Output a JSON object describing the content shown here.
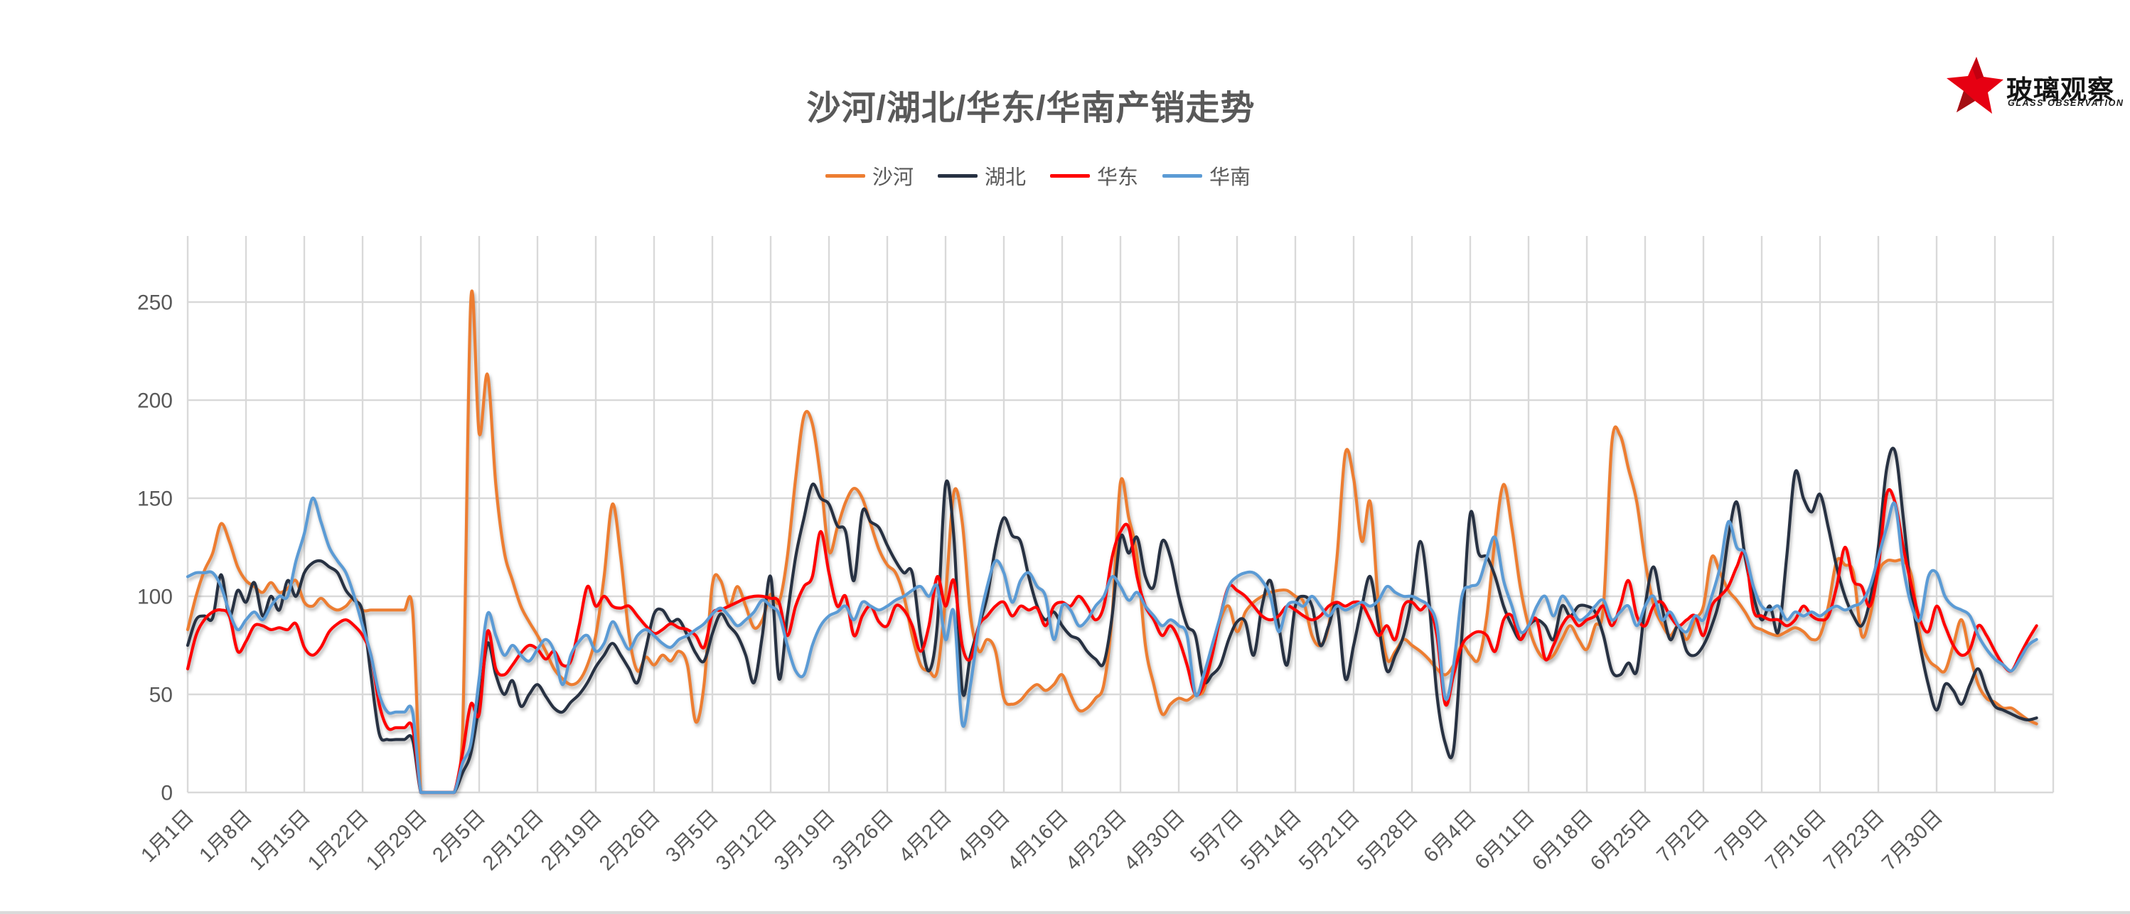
{
  "title": "沙河/湖北/华东/华南产销走势",
  "logo": {
    "name": "玻璃观察",
    "subtitle": "GLASS OBSERVATION"
  },
  "colors": {
    "grid": "#D9D9D9",
    "axis_text": "#595959",
    "logo_red": "#E60012"
  },
  "chart_data": {
    "type": "line",
    "title": "沙河/湖北/华东/华南产销走势",
    "legend_position": "top",
    "grid": true,
    "smoothed_lines": true,
    "ylim": [
      0,
      283
    ],
    "y_ticks": [
      0,
      50,
      100,
      150,
      200,
      250
    ],
    "x_tick_interval_days": 7,
    "x_tick_labels": [
      "1月1日",
      "1月8日",
      "1月15日",
      "1月22日",
      "1月29日",
      "2月5日",
      "2月12日",
      "2月19日",
      "2月26日",
      "3月5日",
      "3月12日",
      "3月19日",
      "3月26日",
      "4月2日",
      "4月9日",
      "4月16日",
      "4月23日",
      "4月30日",
      "5月7日",
      "5月14日",
      "5月21日",
      "5月28日",
      "6月4日",
      "6月11日",
      "6月18日",
      "6月25日",
      "7月2日",
      "7月9日",
      "7月16日",
      "7月23日",
      "7月30日"
    ],
    "series": [
      {
        "id": "shahe",
        "name": "沙河",
        "color": "#ED7D31",
        "values": [
          83,
          100,
          113,
          122,
          137,
          128,
          115,
          108,
          105,
          102,
          107,
          102,
          104,
          108,
          97,
          95,
          99,
          95,
          93,
          95,
          99,
          93,
          93,
          93,
          93,
          93,
          93,
          93,
          0,
          0,
          0,
          0,
          0,
          30,
          251,
          183,
          213,
          157,
          123,
          108,
          95,
          87,
          80,
          72,
          63,
          58,
          55,
          57,
          65,
          80,
          110,
          147,
          120,
          80,
          62,
          69,
          65,
          70,
          67,
          72,
          65,
          36,
          55,
          106,
          108,
          95,
          105,
          95,
          84,
          88,
          101,
          97,
          120,
          160,
          192,
          188,
          160,
          123,
          135,
          148,
          155,
          150,
          137,
          124,
          116,
          112,
          100,
          80,
          65,
          62,
          62,
          100,
          153,
          138,
          90,
          72,
          78,
          72,
          48,
          45,
          47,
          52,
          55,
          52,
          55,
          60,
          50,
          42,
          43,
          48,
          55,
          90,
          158,
          140,
          120,
          75,
          55,
          40,
          45,
          48,
          47,
          50,
          52,
          70,
          88,
          95,
          82,
          92,
          97,
          100,
          102,
          103,
          103,
          100,
          97,
          80,
          75,
          85,
          120,
          173,
          160,
          128,
          148,
          95,
          68,
          72,
          78,
          75,
          72,
          68,
          63,
          60,
          65,
          75,
          70,
          68,
          90,
          130,
          157,
          135,
          105,
          85,
          73,
          68,
          70,
          78,
          85,
          78,
          73,
          85,
          95,
          178,
          182,
          165,
          148,
          118,
          96,
          86,
          80,
          85,
          78,
          88,
          95,
          120,
          112,
          103,
          98,
          92,
          85,
          83,
          81,
          80,
          82,
          84,
          82,
          78,
          80,
          95,
          118,
          116,
          112,
          80,
          90,
          112,
          118,
          118,
          118,
          110,
          80,
          68,
          64,
          62,
          75,
          88,
          70,
          55,
          48,
          46,
          43,
          43,
          40,
          37,
          35
        ]
      },
      {
        "id": "hubei",
        "name": "湖北",
        "color": "#273142",
        "values": [
          75,
          88,
          90,
          89,
          111,
          90,
          103,
          97,
          107,
          90,
          100,
          93,
          108,
          100,
          112,
          117,
          118,
          115,
          112,
          103,
          98,
          92,
          60,
          30,
          27,
          27,
          27,
          27,
          0,
          0,
          0,
          0,
          0,
          10,
          20,
          45,
          76,
          60,
          50,
          57,
          44,
          50,
          55,
          49,
          43,
          41,
          46,
          50,
          56,
          64,
          70,
          76,
          70,
          63,
          56,
          73,
          91,
          93,
          87,
          88,
          80,
          71,
          67,
          81,
          91,
          85,
          80,
          70,
          56,
          80,
          110,
          58,
          90,
          120,
          140,
          157,
          150,
          147,
          136,
          133,
          108,
          143,
          138,
          135,
          126,
          118,
          112,
          112,
          80,
          62,
          85,
          157,
          130,
          52,
          70,
          85,
          100,
          125,
          140,
          131,
          128,
          110,
          95,
          88,
          92,
          85,
          80,
          78,
          72,
          68,
          66,
          90,
          130,
          122,
          130,
          110,
          105,
          128,
          120,
          100,
          85,
          80,
          57,
          60,
          65,
          78,
          87,
          87,
          70,
          95,
          108,
          85,
          65,
          95,
          100,
          95,
          75,
          85,
          95,
          58,
          75,
          95,
          110,
          85,
          62,
          70,
          80,
          100,
          128,
          100,
          50,
          25,
          22,
          80,
          142,
          122,
          120,
          110,
          95,
          85,
          78,
          85,
          88,
          85,
          78,
          95,
          90,
          95,
          95,
          92,
          80,
          62,
          60,
          66,
          62,
          95,
          115,
          95,
          78,
          85,
          72,
          70,
          75,
          85,
          100,
          130,
          148,
          120,
          100,
          88,
          95,
          82,
          120,
          163,
          150,
          143,
          152,
          135,
          115,
          100,
          90,
          85,
          98,
          125,
          165,
          174,
          140,
          100,
          75,
          55,
          42,
          55,
          52,
          45,
          55,
          63,
          52,
          44,
          42,
          40,
          38,
          37,
          38
        ]
      },
      {
        "id": "huadong",
        "name": "华东",
        "color": "#FF0000",
        "values": [
          63,
          80,
          88,
          92,
          93,
          90,
          72,
          77,
          85,
          85,
          83,
          84,
          83,
          86,
          74,
          70,
          74,
          82,
          86,
          88,
          85,
          80,
          70,
          45,
          33,
          33,
          33,
          33,
          0,
          0,
          0,
          0,
          0,
          20,
          45,
          40,
          82,
          63,
          60,
          65,
          71,
          75,
          73,
          68,
          72,
          65,
          67,
          85,
          105,
          95,
          100,
          95,
          94,
          95,
          90,
          85,
          81,
          83,
          86,
          84,
          83,
          80,
          74,
          91,
          93,
          95,
          97,
          99,
          100,
          100,
          99,
          97,
          80,
          95,
          105,
          110,
          133,
          112,
          95,
          100,
          80,
          90,
          95,
          87,
          85,
          95,
          93,
          85,
          72,
          85,
          110,
          95,
          108,
          75,
          68,
          85,
          90,
          95,
          97,
          90,
          95,
          93,
          94,
          85,
          95,
          97,
          95,
          100,
          95,
          88,
          95,
          120,
          133,
          135,
          110,
          95,
          88,
          80,
          85,
          78,
          65,
          50,
          55,
          70,
          90,
          105,
          103,
          100,
          95,
          90,
          88,
          90,
          95,
          93,
          90,
          88,
          90,
          95,
          97,
          95,
          97,
          96,
          88,
          80,
          85,
          78,
          95,
          97,
          93,
          95,
          80,
          45,
          60,
          75,
          80,
          82,
          80,
          72,
          88,
          90,
          78,
          85,
          88,
          68,
          75,
          85,
          90,
          85,
          88,
          90,
          95,
          85,
          95,
          108,
          90,
          85,
          95,
          97,
          90,
          85,
          88,
          90,
          80,
          95,
          100,
          105,
          115,
          122,
          93,
          90,
          88,
          88,
          85,
          88,
          95,
          90,
          88,
          90,
          105,
          125,
          108,
          105,
          95,
          115,
          152,
          148,
          125,
          105,
          88,
          82,
          95,
          85,
          75,
          70,
          73,
          85,
          80,
          72,
          65,
          62,
          70,
          78,
          85
        ]
      },
      {
        "id": "huanan",
        "name": "华南",
        "color": "#5B9BD5",
        "values": [
          110,
          112,
          112,
          112,
          105,
          92,
          83,
          88,
          92,
          88,
          95,
          100,
          100,
          118,
          132,
          150,
          138,
          125,
          118,
          112,
          100,
          85,
          70,
          50,
          41,
          41,
          41,
          41,
          0,
          0,
          0,
          0,
          0,
          15,
          25,
          58,
          91,
          80,
          70,
          75,
          70,
          67,
          73,
          78,
          72,
          55,
          70,
          77,
          80,
          72,
          76,
          87,
          80,
          73,
          80,
          83,
          80,
          76,
          74,
          78,
          80,
          83,
          86,
          91,
          94,
          90,
          85,
          88,
          92,
          98,
          95,
          91,
          75,
          62,
          60,
          75,
          85,
          90,
          92,
          95,
          88,
          97,
          95,
          93,
          95,
          98,
          100,
          103,
          105,
          100,
          105,
          78,
          92,
          35,
          55,
          85,
          105,
          118,
          112,
          97,
          108,
          112,
          105,
          100,
          78,
          95,
          93,
          85,
          88,
          95,
          100,
          110,
          105,
          98,
          102,
          95,
          90,
          85,
          88,
          85,
          80,
          50,
          60,
          75,
          90,
          105,
          110,
          112,
          112,
          108,
          100,
          82,
          95,
          97,
          95,
          100,
          95,
          90,
          95,
          93,
          95,
          97,
          95,
          98,
          105,
          102,
          100,
          100,
          98,
          95,
          85,
          48,
          65,
          100,
          105,
          107,
          120,
          130,
          108,
          95,
          82,
          85,
          95,
          100,
          90,
          100,
          95,
          88,
          90,
          95,
          98,
          88,
          92,
          95,
          85,
          95,
          100,
          88,
          92,
          85,
          82,
          90,
          88,
          100,
          115,
          138,
          125,
          122,
          105,
          95,
          93,
          95,
          88,
          92,
          90,
          92,
          90,
          93,
          95,
          93,
          95,
          97,
          105,
          120,
          135,
          147,
          115,
          95,
          88,
          110,
          112,
          100,
          95,
          93,
          90,
          80,
          73,
          68,
          65,
          62,
          68,
          75,
          78
        ]
      }
    ]
  }
}
